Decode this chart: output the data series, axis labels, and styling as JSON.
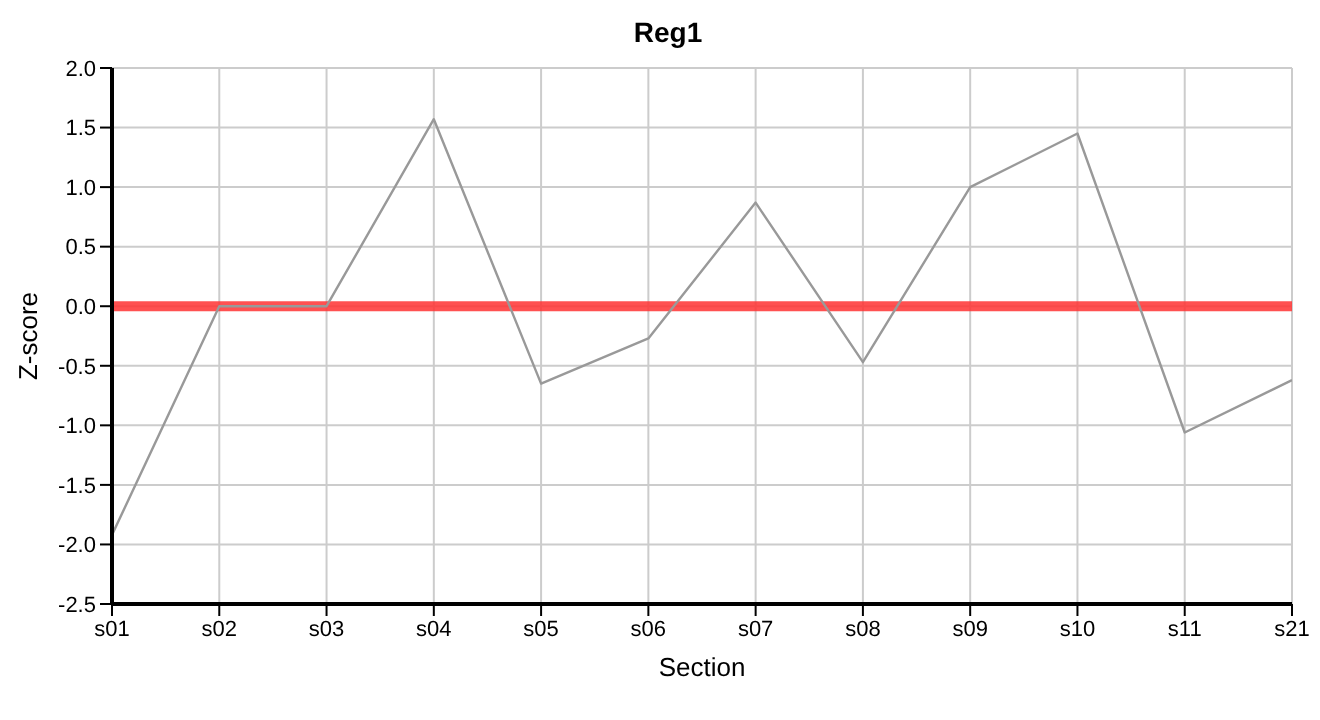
{
  "chart_data": {
    "type": "line",
    "title": "Reg1",
    "xlabel": "Section",
    "ylabel": "Z-score",
    "categories": [
      "s01",
      "s02",
      "s03",
      "s04",
      "s05",
      "s06",
      "s07",
      "s08",
      "s09",
      "s10",
      "s11",
      "s21"
    ],
    "series": [
      {
        "color": "#999999",
        "values": [
          -1.92,
          0.0,
          0.0,
          1.57,
          -0.65,
          -0.27,
          0.87,
          -0.47,
          1.0,
          1.45,
          -1.06,
          -0.62
        ]
      }
    ],
    "ylim": [
      -2.5,
      2.0
    ],
    "yticks": [
      {
        "value": -2.5,
        "label": "-2.5"
      },
      {
        "value": -2,
        "label": "-2.0"
      },
      {
        "value": -1.5,
        "label": "-1.5"
      },
      {
        "value": -1,
        "label": "-1.0"
      },
      {
        "value": -0.5,
        "label": "-0.5"
      },
      {
        "value": 0,
        "label": "0.0"
      },
      {
        "value": 0.5,
        "label": "0.5"
      },
      {
        "value": 1,
        "label": "1.0"
      },
      {
        "value": 1.5,
        "label": "1.5"
      },
      {
        "value": 2,
        "label": "2.0"
      }
    ],
    "ref_lines": [
      {
        "axis": "y",
        "value": 0,
        "color": "#ff3333"
      }
    ],
    "grid": true,
    "legend": false,
    "marker": "none",
    "line_style": "solid"
  }
}
